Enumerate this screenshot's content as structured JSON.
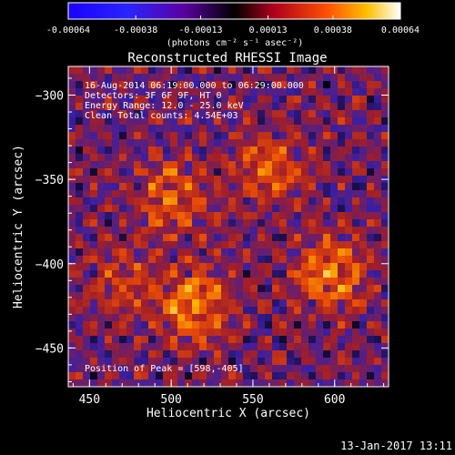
{
  "chart_data": {
    "type": "heatmap",
    "title": "Reconstructed RHESSI Image",
    "xlabel": "Heliocentric X (arcsec)",
    "ylabel": "Heliocentric Y (arcsec)",
    "xlim": [
      437,
      633
    ],
    "ylim": [
      -473,
      -283
    ],
    "x_ticks": [
      450,
      500,
      550,
      600
    ],
    "y_ticks": [
      -300,
      -350,
      -400,
      -450
    ],
    "colorbar": {
      "range": [
        -0.00064,
        0.00064
      ],
      "ticks": [
        "-0.00064",
        "-0.00038",
        "-0.00013",
        "0.00013",
        "0.00038",
        "0.00064"
      ],
      "unit_label": "(photons cm⁻² s⁻¹ asec⁻²)"
    },
    "info": [
      "16-Aug-2014 06:19:00.000 to 06:29:00.000",
      "Detectors: 3F 6F 9F, HT 0",
      "Energy Range: 12.0 - 25.0 keV",
      "Clean    Total counts: 4.54E+03"
    ],
    "peak_label": "Position of Peak = [598,-405]",
    "peak_position": [
      598,
      -405
    ],
    "sources": [
      {
        "x": 515,
        "y": -425,
        "amp": 1.0
      },
      {
        "x": 598,
        "y": -405,
        "amp": 0.95
      },
      {
        "x": 500,
        "y": -360,
        "amp": 0.75
      },
      {
        "x": 560,
        "y": -345,
        "amp": 0.7
      },
      {
        "x": 470,
        "y": -410,
        "amp": 0.55
      }
    ],
    "palette": [
      "#000000",
      "#3b1fa3",
      "#a01e2a",
      "#e84a05",
      "#ffb400",
      "#ffffff"
    ]
  },
  "footer": {
    "date": "13-Jan-2017 13:11"
  }
}
